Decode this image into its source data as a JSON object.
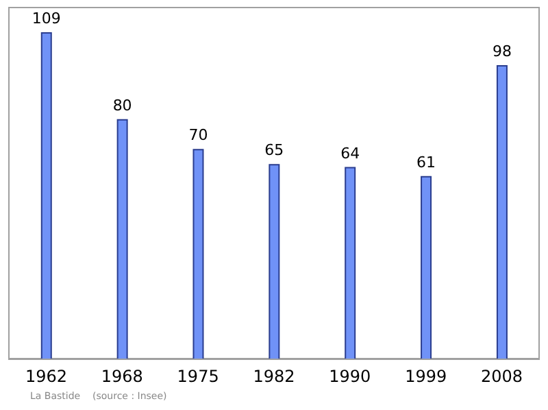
{
  "chart_data": {
    "type": "bar",
    "categories": [
      "1962",
      "1968",
      "1975",
      "1982",
      "1990",
      "1999",
      "2008"
    ],
    "values": [
      109,
      80,
      70,
      65,
      64,
      61,
      98
    ],
    "color": "#7092f7",
    "data_labels": true,
    "annotations": [
      "La Bastide    (source : Insee)"
    ]
  }
}
